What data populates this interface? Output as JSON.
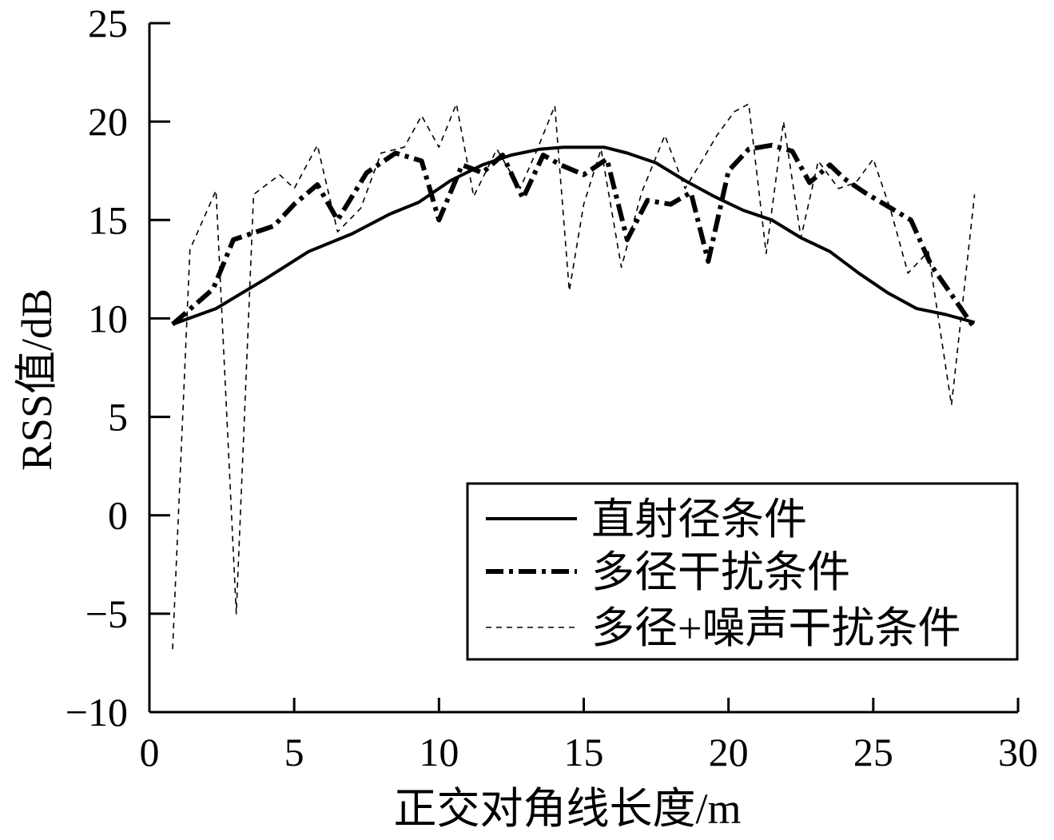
{
  "chart_data": {
    "type": "line",
    "xlabel": "正交对角线长度/m",
    "ylabel": "RSS值/dB",
    "xlim": [
      0,
      30
    ],
    "ylim": [
      -10,
      25
    ],
    "xticks": [
      0,
      5,
      10,
      15,
      20,
      25,
      30
    ],
    "yticks": [
      -10,
      -5,
      0,
      5,
      10,
      15,
      20,
      25
    ],
    "xtick_labels": [
      "0",
      "5",
      "10",
      "15",
      "20",
      "25",
      "30"
    ],
    "ytick_labels": [
      "−10",
      "−5",
      "0",
      "5",
      "10",
      "15",
      "20",
      "25"
    ],
    "grid": false,
    "legend_position": "bottom-right",
    "series": [
      {
        "name": "直射径条件",
        "style": "solid",
        "x": [
          0.8,
          2.3,
          4.0,
          5.5,
          7.0,
          8.3,
          9.3,
          10.4,
          11.5,
          12.5,
          13.5,
          14.3,
          15.0,
          15.7,
          16.5,
          17.5,
          18.5,
          19.5,
          20.5,
          21.5,
          22.5,
          23.5,
          24.5,
          25.5,
          26.5,
          27.5,
          28.5
        ],
        "y": [
          9.7,
          10.5,
          12.0,
          13.4,
          14.3,
          15.3,
          15.9,
          17.0,
          17.8,
          18.3,
          18.6,
          18.7,
          18.7,
          18.7,
          18.4,
          17.9,
          17.0,
          16.2,
          15.5,
          15.0,
          14.1,
          13.4,
          12.3,
          11.3,
          10.5,
          10.2,
          9.8
        ]
      },
      {
        "name": "多径干扰条件",
        "style": "dashdot",
        "x": [
          0.8,
          2.2,
          2.9,
          4.3,
          5.0,
          5.8,
          6.5,
          7.5,
          8.5,
          9.4,
          10.0,
          10.8,
          11.5,
          12.2,
          12.9,
          13.6,
          14.2,
          15.0,
          15.8,
          16.5,
          17.2,
          18.0,
          18.7,
          19.3,
          20.0,
          20.7,
          21.5,
          22.2,
          22.8,
          23.5,
          24.0,
          24.7,
          25.5,
          26.3,
          27.0,
          27.8,
          28.5
        ],
        "y": [
          9.7,
          11.5,
          14.0,
          14.7,
          15.8,
          16.8,
          15.0,
          17.4,
          18.4,
          18.0,
          15.0,
          17.8,
          17.4,
          18.3,
          16.1,
          18.3,
          17.8,
          17.3,
          18.1,
          14.0,
          16.0,
          15.8,
          16.4,
          12.9,
          17.5,
          18.6,
          18.8,
          18.5,
          16.9,
          17.8,
          17.1,
          16.4,
          15.7,
          15.0,
          12.7,
          11.0,
          9.5
        ]
      },
      {
        "name": "多径+噪声干扰条件",
        "style": "dashed",
        "x": [
          0.8,
          1.4,
          2.3,
          3.0,
          3.6,
          4.5,
          5.0,
          5.8,
          6.5,
          7.3,
          8.0,
          8.8,
          9.4,
          10.0,
          10.6,
          11.2,
          12.0,
          12.8,
          13.4,
          14.0,
          14.5,
          15.0,
          15.6,
          16.3,
          17.0,
          17.8,
          18.5,
          19.0,
          19.6,
          20.2,
          20.7,
          21.3,
          21.9,
          22.5,
          23.1,
          23.8,
          24.4,
          25.0,
          25.6,
          26.2,
          26.9,
          27.7,
          28.5
        ],
        "y": [
          -6.8,
          13.5,
          16.5,
          -5.0,
          16.3,
          17.3,
          16.6,
          18.8,
          14.4,
          15.6,
          18.4,
          18.7,
          20.3,
          18.7,
          20.9,
          16.2,
          18.6,
          16.6,
          18.6,
          20.8,
          11.4,
          15.8,
          18.6,
          12.6,
          16.4,
          19.3,
          16.6,
          17.8,
          19.3,
          20.5,
          20.9,
          13.3,
          20.0,
          14.1,
          18.0,
          16.6,
          16.9,
          18.1,
          15.5,
          12.3,
          13.4,
          5.6,
          16.3
        ]
      }
    ]
  }
}
